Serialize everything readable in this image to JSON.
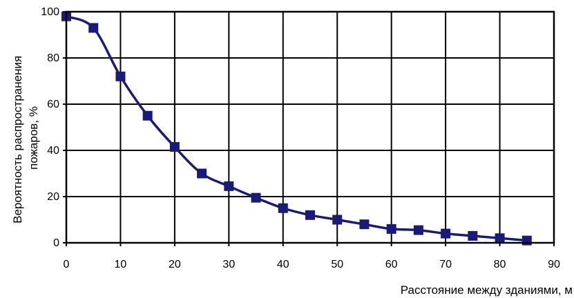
{
  "chart_data": {
    "type": "line",
    "xlabel": "Расстояние между зданиями, м",
    "ylabel": "Вероятность распространения пожаров, %",
    "ylabel_lines": [
      "Вероятность распространения",
      "пожаров, %"
    ],
    "xlim": [
      0,
      90
    ],
    "ylim": [
      0,
      100
    ],
    "xticks": [
      0,
      10,
      20,
      30,
      40,
      50,
      60,
      70,
      80,
      90
    ],
    "yticks": [
      0,
      20,
      40,
      60,
      80,
      100
    ],
    "grid": true,
    "series": [
      {
        "color": "#1a1a7a",
        "marker": "square",
        "x": [
          0,
          5,
          10,
          15,
          20,
          25,
          30,
          35,
          40,
          45,
          50,
          55,
          60,
          65,
          70,
          75,
          80,
          85
        ],
        "y": [
          98,
          93,
          72,
          55,
          41.5,
          30,
          24.5,
          19.5,
          15,
          12,
          10,
          8,
          6,
          5.5,
          4,
          3,
          2,
          1
        ]
      }
    ]
  }
}
